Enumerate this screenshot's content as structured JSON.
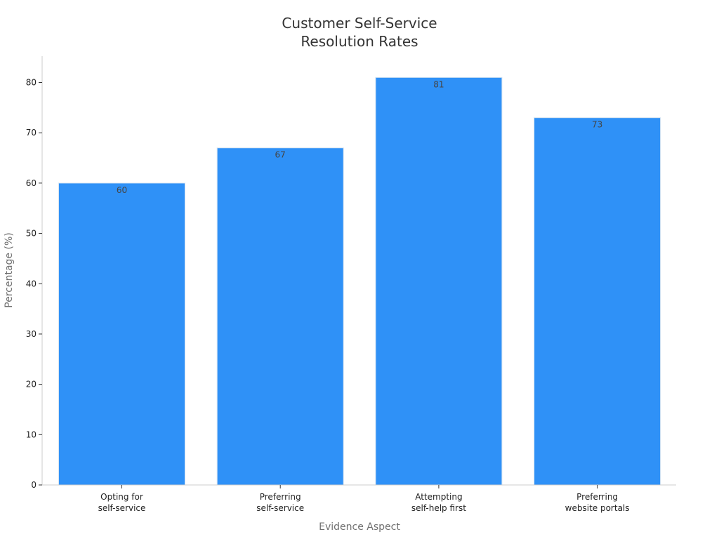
{
  "chart_data": {
    "type": "bar",
    "title": [
      "Customer Self-Service",
      "Resolution Rates"
    ],
    "xlabel": "Evidence Aspect",
    "ylabel": "Percentage (%)",
    "categories": [
      [
        "Opting for",
        "self-service"
      ],
      [
        "Preferring",
        "self-service"
      ],
      [
        "Attempting",
        "self-help first"
      ],
      [
        "Preferring",
        "website portals"
      ]
    ],
    "values": [
      60,
      67,
      81,
      73
    ],
    "ylim": [
      0,
      85
    ],
    "yticks": [
      0,
      10,
      20,
      30,
      40,
      50,
      60,
      70,
      80
    ],
    "grid": false,
    "legend": "none",
    "colors": {
      "bar": "#2f91f7",
      "bar_edge": "#d6e4f2",
      "axis": "#cccccc",
      "tick": "#333333",
      "title": "#333333",
      "axis_label": "#707070",
      "data_label": "#444444"
    }
  }
}
